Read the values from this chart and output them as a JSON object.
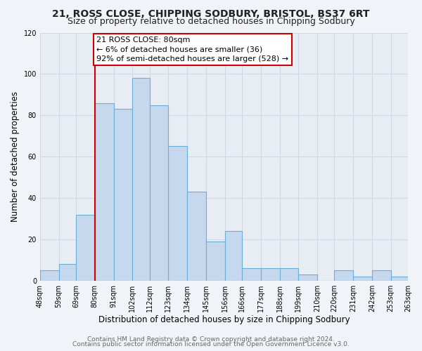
{
  "title1": "21, ROSS CLOSE, CHIPPING SODBURY, BRISTOL, BS37 6RT",
  "title2": "Size of property relative to detached houses in Chipping Sodbury",
  "xlabel": "Distribution of detached houses by size in Chipping Sodbury",
  "ylabel": "Number of detached properties",
  "bin_edges": [
    48,
    59,
    69,
    80,
    91,
    102,
    112,
    123,
    134,
    145,
    156,
    166,
    177,
    188,
    199,
    210,
    220,
    231,
    242,
    253,
    263
  ],
  "bar_heights": [
    5,
    8,
    32,
    86,
    83,
    98,
    85,
    65,
    43,
    19,
    24,
    6,
    6,
    6,
    3,
    0,
    5,
    2,
    5,
    2
  ],
  "bar_color": "#c5d8ed",
  "bar_edge_color": "#6baed6",
  "vline_x": 80,
  "vline_color": "#cc0000",
  "annotation_title": "21 ROSS CLOSE: 80sqm",
  "annotation_line1": "← 6% of detached houses are smaller (36)",
  "annotation_line2": "92% of semi-detached houses are larger (528) →",
  "annotation_box_edge_color": "#cc0000",
  "annotation_box_face_color": "#ffffff",
  "ylim": [
    0,
    120
  ],
  "yticks": [
    0,
    20,
    40,
    60,
    80,
    100,
    120
  ],
  "tick_labels": [
    "48sqm",
    "59sqm",
    "69sqm",
    "80sqm",
    "91sqm",
    "102sqm",
    "112sqm",
    "123sqm",
    "134sqm",
    "145sqm",
    "156sqm",
    "166sqm",
    "177sqm",
    "188sqm",
    "199sqm",
    "210sqm",
    "220sqm",
    "231sqm",
    "242sqm",
    "253sqm",
    "263sqm"
  ],
  "footer1": "Contains HM Land Registry data © Crown copyright and database right 2024.",
  "footer2": "Contains public sector information licensed under the Open Government Licence v3.0.",
  "bg_color": "#f0f4f9",
  "plot_bg_color": "#e8edf4",
  "grid_color": "#d0d8e4",
  "title_fontsize": 10,
  "subtitle_fontsize": 9,
  "axis_label_fontsize": 8.5,
  "tick_fontsize": 7,
  "footer_fontsize": 6.5,
  "annotation_fontsize": 8
}
